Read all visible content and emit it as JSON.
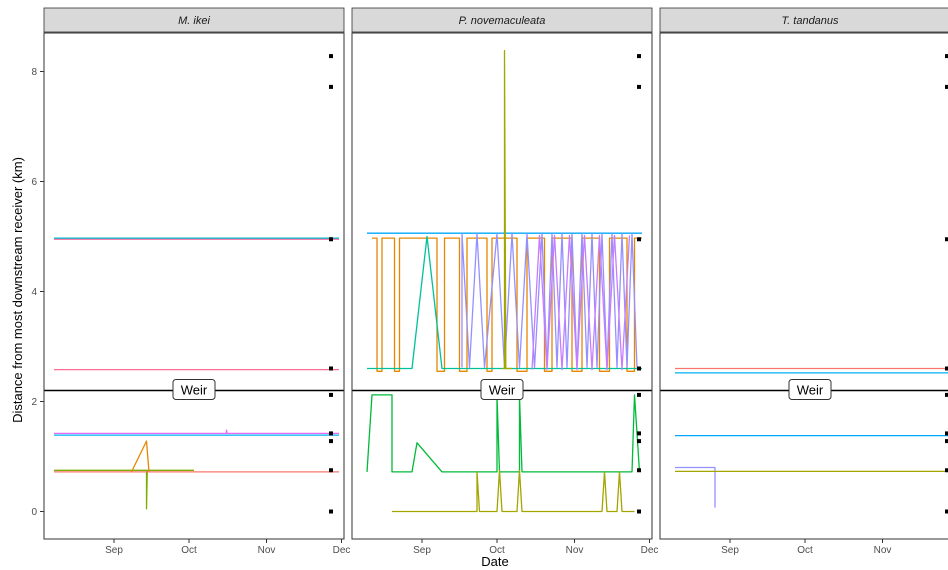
{
  "chart_data": {
    "type": "line",
    "xlabel": "Date",
    "ylabel": "Distance from most downstream receiver (km)",
    "y_ticks": [
      "0",
      "2",
      "4",
      "6",
      "8"
    ],
    "x_ticks": [
      "Sep",
      "Oct",
      "Nov",
      "Dec"
    ],
    "ylim": [
      -0.5,
      8.7
    ],
    "xlim_days": [
      -20,
      100
    ],
    "x_tick_days": [
      8,
      38,
      69,
      99
    ],
    "reference_line": {
      "y": 2.2,
      "label": "Weir",
      "color": "#000000"
    },
    "receivers_y": [
      0,
      0.75,
      1.28,
      1.42,
      2.12,
      2.6,
      4.95,
      7.72,
      8.28
    ],
    "panels": [
      {
        "title": "M. ikei",
        "series": [
          {
            "color": "#f8766d",
            "points": [
              [
                -16,
                4.95
              ],
              [
                98,
                4.95
              ]
            ]
          },
          {
            "color": "#fb61d7",
            "points": [
              [
                -16,
                4.96
              ],
              [
                98,
                4.96
              ]
            ]
          },
          {
            "color": "#00bfc4",
            "points": [
              [
                -16,
                4.97
              ],
              [
                98,
                4.97
              ]
            ]
          },
          {
            "color": "#ff6c91",
            "points": [
              [
                -16,
                2.58
              ],
              [
                98,
                2.58
              ]
            ]
          },
          {
            "color": "#00b0f6",
            "points": [
              [
                -16,
                1.39
              ],
              [
                98,
                1.39
              ]
            ]
          },
          {
            "color": "#e76bf3",
            "points": [
              [
                -16,
                1.42
              ],
              [
                53,
                1.42
              ],
              [
                53,
                1.48
              ],
              [
                53.2,
                1.42
              ],
              [
                98,
                1.42
              ]
            ]
          },
          {
            "color": "#7cae00",
            "points": [
              [
                -16,
                0.75
              ],
              [
                21,
                0.75
              ],
              [
                21,
                0.05
              ],
              [
                21.3,
                0.75
              ],
              [
                40,
                0.75
              ]
            ]
          },
          {
            "color": "#f8766d",
            "points": [
              [
                -16,
                0.72
              ],
              [
                98,
                0.72
              ]
            ]
          },
          {
            "color": "#e58700",
            "points": [
              [
                15,
                0.72
              ],
              [
                21,
                1.28
              ],
              [
                22,
                0.72
              ]
            ]
          }
        ]
      },
      {
        "title": "P. novemaculeata",
        "series": [
          {
            "color": "#00a9ff",
            "points": [
              [
                -14,
                5.06
              ],
              [
                96,
                5.06
              ]
            ]
          },
          {
            "color": "#e58700",
            "points": [
              [
                -12,
                4.97
              ],
              [
                -10,
                4.97
              ],
              [
                -10,
                2.55
              ],
              [
                -8,
                2.55
              ],
              [
                -8,
                4.97
              ],
              [
                -3,
                4.97
              ],
              [
                -3,
                2.55
              ],
              [
                -1,
                2.55
              ],
              [
                -1,
                4.97
              ],
              [
                14,
                4.97
              ],
              [
                14,
                2.55
              ],
              [
                17,
                2.55
              ],
              [
                17,
                4.97
              ],
              [
                23,
                4.97
              ],
              [
                23,
                2.55
              ],
              [
                26,
                2.55
              ],
              [
                26,
                4.97
              ],
              [
                34,
                4.97
              ],
              [
                34,
                2.55
              ],
              [
                36,
                2.55
              ],
              [
                36,
                4.97
              ],
              [
                46,
                4.97
              ],
              [
                46,
                2.55
              ],
              [
                50,
                2.55
              ],
              [
                50,
                4.97
              ],
              [
                57,
                4.97
              ],
              [
                57,
                2.55
              ],
              [
                60,
                2.55
              ],
              [
                60,
                4.97
              ],
              [
                68,
                4.97
              ],
              [
                68,
                2.55
              ],
              [
                72,
                2.55
              ],
              [
                72,
                4.97
              ],
              [
                79,
                4.97
              ],
              [
                79,
                2.55
              ],
              [
                83,
                2.55
              ],
              [
                83,
                4.97
              ],
              [
                90,
                4.97
              ],
              [
                90,
                2.55
              ],
              [
                93,
                2.55
              ],
              [
                93,
                4.97
              ],
              [
                96,
                4.97
              ]
            ]
          },
          {
            "color": "#00c19a",
            "points": [
              [
                -14,
                2.6
              ],
              [
                4,
                2.6
              ],
              [
                10,
                5.0
              ],
              [
                16,
                2.6
              ],
              [
                96,
                2.6
              ]
            ]
          },
          {
            "color": "#9590ff",
            "points": [
              [
                24,
                2.62
              ],
              [
                24,
                5.05
              ],
              [
                27,
                2.62
              ],
              [
                30,
                5.05
              ],
              [
                33,
                2.62
              ],
              [
                38,
                5.05
              ],
              [
                41,
                2.62
              ],
              [
                44,
                5.05
              ],
              [
                47,
                2.62
              ],
              [
                50,
                5.05
              ],
              [
                53,
                2.62
              ],
              [
                56,
                5.05
              ],
              [
                58,
                2.62
              ],
              [
                60,
                5.05
              ],
              [
                62,
                2.62
              ],
              [
                64,
                5.05
              ],
              [
                66,
                2.62
              ],
              [
                68,
                5.05
              ],
              [
                70,
                2.62
              ],
              [
                72,
                5.05
              ],
              [
                74,
                2.62
              ],
              [
                76,
                5.05
              ],
              [
                78,
                2.62
              ],
              [
                80,
                5.05
              ],
              [
                82,
                2.62
              ],
              [
                84,
                5.05
              ],
              [
                86,
                2.62
              ],
              [
                88,
                5.05
              ],
              [
                90,
                2.62
              ],
              [
                92,
                5.05
              ],
              [
                94,
                2.62
              ]
            ]
          },
          {
            "color": "#c77cff",
            "points": [
              [
                52,
                2.58
              ],
              [
                55,
                5.02
              ],
              [
                58,
                2.58
              ],
              [
                61,
                5.02
              ],
              [
                64,
                2.58
              ],
              [
                67,
                5.02
              ],
              [
                70,
                2.58
              ],
              [
                73,
                5.02
              ],
              [
                76,
                2.58
              ],
              [
                79,
                5.02
              ],
              [
                82,
                2.58
              ],
              [
                85,
                5.02
              ],
              [
                88,
                2.58
              ],
              [
                91,
                5.02
              ]
            ]
          },
          {
            "color": "#a3a500",
            "points": [
              [
                40,
                2.6
              ],
              [
                41,
                2.6
              ],
              [
                41,
                8.38
              ],
              [
                41.5,
                2.6
              ],
              [
                44,
                2.6
              ]
            ]
          },
          {
            "color": "#00ba38",
            "points": [
              [
                -14,
                0.72
              ],
              [
                -12,
                2.12
              ],
              [
                -4,
                2.12
              ],
              [
                -4,
                0.72
              ],
              [
                4,
                0.72
              ],
              [
                6,
                1.25
              ],
              [
                16,
                0.72
              ],
              [
                38,
                0.72
              ],
              [
                38,
                2.1
              ],
              [
                39,
                0.72
              ],
              [
                47,
                0.72
              ],
              [
                47,
                2.1
              ],
              [
                48,
                0.72
              ],
              [
                92,
                0.72
              ],
              [
                93,
                2.12
              ],
              [
                95,
                0.72
              ]
            ]
          },
          {
            "color": "#a3a500",
            "points": [
              [
                -4,
                0.0
              ],
              [
                30,
                0.0
              ],
              [
                30,
                0.72
              ],
              [
                31,
                0.0
              ],
              [
                38,
                0.0
              ],
              [
                39,
                0.75
              ],
              [
                40,
                0.0
              ],
              [
                46,
                0.0
              ],
              [
                47,
                0.75
              ],
              [
                48,
                0.0
              ],
              [
                80,
                0.0
              ],
              [
                81,
                0.72
              ],
              [
                82,
                0.0
              ],
              [
                86,
                0.0
              ],
              [
                87,
                0.72
              ],
              [
                88,
                0.0
              ],
              [
                93,
                0.0
              ]
            ]
          }
        ]
      },
      {
        "title": "T. tandanus",
        "series": [
          {
            "color": "#f8766d",
            "points": [
              [
                -14,
                2.6
              ],
              [
                98,
                2.6
              ]
            ]
          },
          {
            "color": "#00b0f6",
            "points": [
              [
                -14,
                2.52
              ],
              [
                98,
                2.52
              ]
            ]
          },
          {
            "color": "#00a9ff",
            "points": [
              [
                -14,
                1.38
              ],
              [
                98,
                1.38
              ]
            ]
          },
          {
            "color": "#9590ff",
            "points": [
              [
                -14,
                0.8
              ],
              [
                2,
                0.8
              ],
              [
                2,
                0.07
              ]
            ]
          },
          {
            "color": "#a3a500",
            "points": [
              [
                -14,
                0.73
              ],
              [
                98,
                0.73
              ]
            ]
          }
        ]
      }
    ]
  }
}
